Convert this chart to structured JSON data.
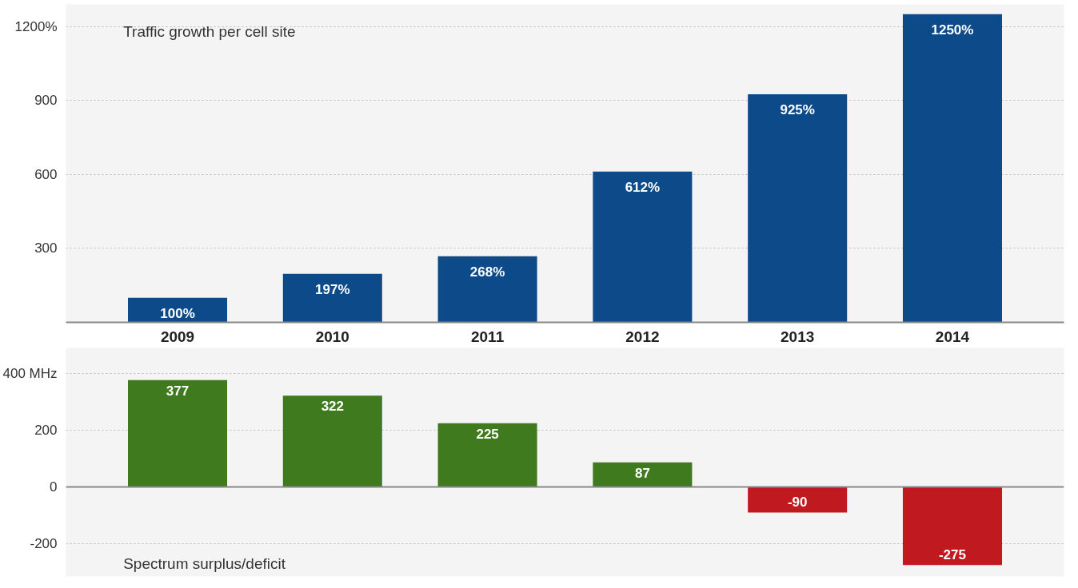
{
  "chart_data": [
    {
      "type": "bar",
      "title": "Traffic growth per cell site",
      "categories": [
        "2009",
        "2010",
        "2011",
        "2012",
        "2013",
        "2014"
      ],
      "values": [
        100,
        197,
        268,
        612,
        925,
        1250
      ],
      "value_labels": [
        "100%",
        "197%",
        "268%",
        "612%",
        "925%",
        "1250%"
      ],
      "color": "#0d4a8a",
      "ylim": [
        0,
        1290
      ],
      "yticks": [
        300,
        600,
        900,
        {
          "value": 1200,
          "label": "1200%"
        }
      ],
      "grid": "y"
    },
    {
      "type": "bar",
      "title": "Spectrum surplus/deficit",
      "categories": [
        null,
        null,
        null,
        null,
        null,
        null
      ],
      "values": [
        377,
        322,
        225,
        87,
        -90,
        -275
      ],
      "colors": [
        "#3f7a1f",
        "#3f7a1f",
        "#3f7a1f",
        "#3f7a1f",
        "#c0191f",
        "#c0191f"
      ],
      "data_labels": true,
      "ylim": [
        -315,
        490
      ],
      "yticks": [
        {
          "value": 400,
          "label": "400 MHz"
        },
        200,
        0,
        -200
      ],
      "grid": "y",
      "tick_labels": "y"
    }
  ]
}
